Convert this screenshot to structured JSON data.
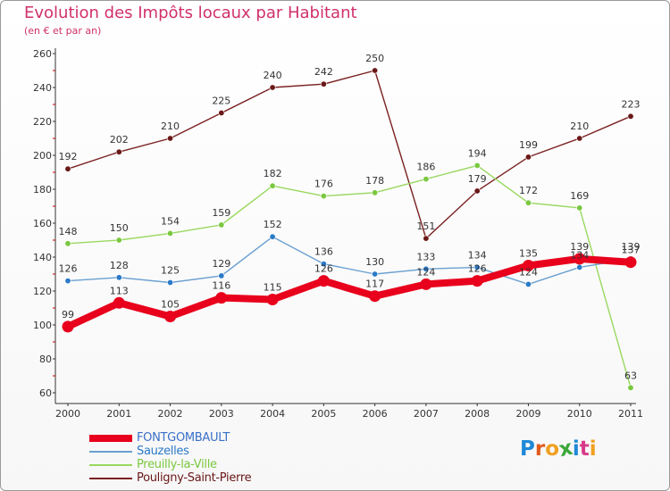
{
  "title": "Evolution des Impôts locaux par Habitant",
  "subtitle": "(en € et par an)",
  "colors": {
    "title": "#d0306a",
    "axis": "#333333",
    "grid_tick": "#cc0000"
  },
  "logo": {
    "letters": [
      "P",
      "r",
      "o",
      "x",
      "i",
      "t",
      "i"
    ],
    "colors": [
      "#1e88d8",
      "#e05a1a",
      "#f0a020",
      "#3aa83a",
      "#1e88d8",
      "#d83a8a",
      "#f0a020"
    ]
  },
  "chart_data": {
    "type": "line",
    "title": "Evolution des Impôts locaux par Habitant",
    "subtitle": "(en € et par an)",
    "xlabel": "",
    "ylabel": "",
    "x": [
      "2000",
      "2001",
      "2002",
      "2003",
      "2004",
      "2005",
      "2006",
      "2007",
      "2008",
      "2009",
      "2010",
      "2011"
    ],
    "ylim": [
      60,
      260
    ],
    "yticks": [
      "60",
      "80",
      "100",
      "120",
      "140",
      "160",
      "180",
      "200",
      "220",
      "240",
      "260"
    ],
    "legend_position": "bottom-left",
    "series": [
      {
        "name": "FONTGOMBAULT",
        "color": "#e8001c",
        "emphasis": "bold",
        "values": [
          99,
          113,
          105,
          116,
          115,
          126,
          117,
          124,
          126,
          135,
          139,
          137
        ],
        "labels": [
          "99",
          "113",
          "105",
          "116",
          "115",
          "126",
          "117",
          "124",
          "126",
          "135",
          "139",
          "137"
        ]
      },
      {
        "name": "Sauzelles",
        "color": "#6aa0d0",
        "marker": "#2a7ac8",
        "values": [
          126,
          128,
          125,
          129,
          152,
          136,
          130,
          133,
          134,
          124,
          134,
          139
        ],
        "labels": [
          "126",
          "128",
          "125",
          "129",
          "152",
          "136",
          "130",
          "133",
          "134",
          "124",
          "134",
          "139"
        ]
      },
      {
        "name": "Preuilly-la-Ville",
        "color": "#9ad860",
        "marker": "#7ac840",
        "values": [
          148,
          150,
          154,
          159,
          182,
          176,
          178,
          186,
          194,
          172,
          169,
          63
        ],
        "labels": [
          "148",
          "150",
          "154",
          "159",
          "182",
          "176",
          "178",
          "186",
          "194",
          "172",
          "169",
          "63"
        ]
      },
      {
        "name": "Pouligny-Saint-Pierre",
        "color": "#7a2020",
        "marker": "#6a1818",
        "values": [
          192,
          202,
          210,
          225,
          240,
          242,
          250,
          151,
          179,
          199,
          210,
          223
        ],
        "labels": [
          "192",
          "202",
          "210",
          "225",
          "240",
          "242",
          "250",
          "151",
          "179",
          "199",
          "210",
          "223"
        ]
      }
    ]
  }
}
